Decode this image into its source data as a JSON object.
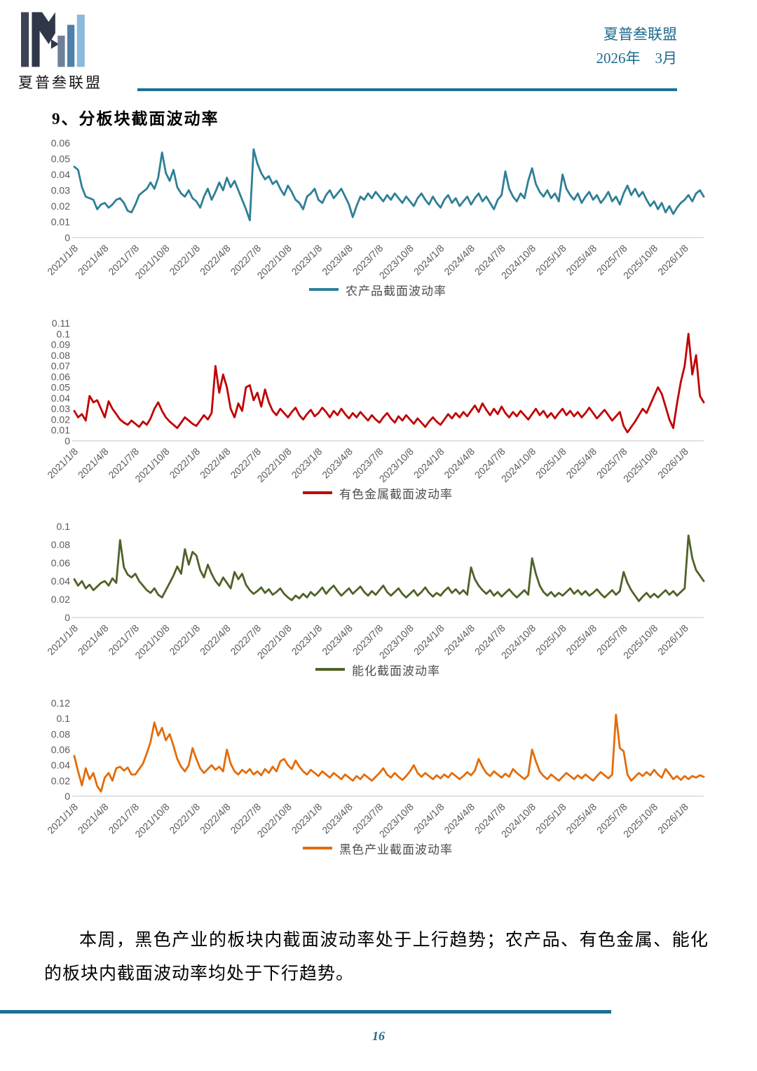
{
  "header": {
    "logo_label": "夏普叁联盟",
    "org_name": "夏普叁联盟",
    "issue_date": "2026年　3月"
  },
  "section_title": "9、分板块截面波动率",
  "chart_data": {
    "type": "line",
    "legend_position": "bottom",
    "grid": "off",
    "x_tick_labels": [
      "2021/1/8",
      "2021/4/8",
      "2021/7/8",
      "2021/10/8",
      "2022/1/8",
      "2022/4/8",
      "2022/7/8",
      "2022/10/8",
      "2023/1/8",
      "2023/4/8",
      "2023/7/8",
      "2023/10/8",
      "2024/1/8",
      "2024/4/8",
      "2024/7/8",
      "2024/10/8",
      "2025/1/8",
      "2025/4/8",
      "2025/7/8",
      "2025/10/8",
      "2026/1/8"
    ],
    "points_per_tick_interval": 8,
    "charts": [
      {
        "name": "农产品截面波动率",
        "color": "#2E7F96",
        "ylim": [
          0,
          0.06
        ],
        "ystep": 0.01,
        "values": [
          0.045,
          0.043,
          0.032,
          0.026,
          0.025,
          0.024,
          0.018,
          0.021,
          0.022,
          0.019,
          0.021,
          0.024,
          0.025,
          0.022,
          0.017,
          0.016,
          0.021,
          0.027,
          0.029,
          0.031,
          0.035,
          0.031,
          0.038,
          0.054,
          0.041,
          0.036,
          0.043,
          0.032,
          0.028,
          0.026,
          0.03,
          0.025,
          0.023,
          0.019,
          0.026,
          0.031,
          0.024,
          0.029,
          0.035,
          0.03,
          0.038,
          0.032,
          0.036,
          0.03,
          0.024,
          0.018,
          0.011,
          0.056,
          0.047,
          0.041,
          0.037,
          0.039,
          0.034,
          0.036,
          0.031,
          0.027,
          0.033,
          0.029,
          0.024,
          0.022,
          0.018,
          0.026,
          0.028,
          0.031,
          0.024,
          0.022,
          0.027,
          0.03,
          0.025,
          0.028,
          0.031,
          0.026,
          0.021,
          0.013,
          0.02,
          0.026,
          0.024,
          0.028,
          0.025,
          0.029,
          0.026,
          0.023,
          0.027,
          0.024,
          0.028,
          0.025,
          0.022,
          0.026,
          0.023,
          0.02,
          0.025,
          0.028,
          0.024,
          0.021,
          0.026,
          0.022,
          0.019,
          0.024,
          0.027,
          0.022,
          0.025,
          0.02,
          0.023,
          0.026,
          0.021,
          0.025,
          0.028,
          0.023,
          0.026,
          0.022,
          0.018,
          0.024,
          0.027,
          0.042,
          0.031,
          0.026,
          0.023,
          0.028,
          0.025,
          0.036,
          0.044,
          0.034,
          0.029,
          0.026,
          0.03,
          0.025,
          0.028,
          0.023,
          0.04,
          0.031,
          0.027,
          0.024,
          0.028,
          0.022,
          0.026,
          0.029,
          0.024,
          0.027,
          0.022,
          0.025,
          0.029,
          0.023,
          0.026,
          0.021,
          0.028,
          0.033,
          0.027,
          0.031,
          0.026,
          0.029,
          0.024,
          0.02,
          0.023,
          0.018,
          0.022,
          0.016,
          0.02,
          0.015,
          0.019,
          0.022,
          0.024,
          0.027,
          0.023,
          0.028,
          0.03,
          0.026
        ]
      },
      {
        "name": "有色金属截面波动率",
        "color": "#C00000",
        "ylim": [
          0,
          0.11
        ],
        "ystep": 0.01,
        "values": [
          0.028,
          0.022,
          0.025,
          0.019,
          0.042,
          0.036,
          0.038,
          0.03,
          0.022,
          0.037,
          0.03,
          0.025,
          0.02,
          0.017,
          0.015,
          0.019,
          0.016,
          0.013,
          0.018,
          0.015,
          0.021,
          0.03,
          0.036,
          0.028,
          0.022,
          0.018,
          0.015,
          0.012,
          0.017,
          0.022,
          0.019,
          0.016,
          0.014,
          0.019,
          0.024,
          0.02,
          0.026,
          0.07,
          0.045,
          0.062,
          0.05,
          0.03,
          0.022,
          0.035,
          0.028,
          0.05,
          0.052,
          0.038,
          0.045,
          0.032,
          0.048,
          0.036,
          0.028,
          0.024,
          0.03,
          0.026,
          0.022,
          0.027,
          0.031,
          0.024,
          0.02,
          0.025,
          0.029,
          0.023,
          0.026,
          0.031,
          0.027,
          0.022,
          0.028,
          0.024,
          0.03,
          0.025,
          0.021,
          0.026,
          0.022,
          0.027,
          0.023,
          0.019,
          0.024,
          0.02,
          0.017,
          0.022,
          0.026,
          0.021,
          0.017,
          0.023,
          0.019,
          0.024,
          0.02,
          0.016,
          0.021,
          0.017,
          0.013,
          0.018,
          0.022,
          0.018,
          0.015,
          0.02,
          0.025,
          0.021,
          0.026,
          0.022,
          0.027,
          0.023,
          0.028,
          0.033,
          0.027,
          0.035,
          0.029,
          0.024,
          0.03,
          0.025,
          0.032,
          0.026,
          0.022,
          0.027,
          0.023,
          0.028,
          0.024,
          0.02,
          0.025,
          0.03,
          0.024,
          0.028,
          0.022,
          0.026,
          0.021,
          0.026,
          0.03,
          0.024,
          0.028,
          0.023,
          0.027,
          0.022,
          0.026,
          0.031,
          0.026,
          0.021,
          0.025,
          0.029,
          0.024,
          0.019,
          0.023,
          0.027,
          0.014,
          0.008,
          0.013,
          0.018,
          0.024,
          0.03,
          0.026,
          0.034,
          0.042,
          0.05,
          0.044,
          0.032,
          0.02,
          0.012,
          0.035,
          0.055,
          0.07,
          0.1,
          0.062,
          0.08,
          0.042,
          0.036
        ]
      },
      {
        "name": "能化截面波动率",
        "color": "#4F6228",
        "ylim": [
          0,
          0.1
        ],
        "ystep": 0.02,
        "values": [
          0.042,
          0.035,
          0.04,
          0.032,
          0.036,
          0.03,
          0.034,
          0.038,
          0.04,
          0.035,
          0.043,
          0.038,
          0.085,
          0.055,
          0.047,
          0.044,
          0.048,
          0.04,
          0.035,
          0.03,
          0.027,
          0.032,
          0.025,
          0.022,
          0.03,
          0.038,
          0.046,
          0.056,
          0.048,
          0.075,
          0.058,
          0.072,
          0.068,
          0.052,
          0.044,
          0.058,
          0.048,
          0.04,
          0.035,
          0.044,
          0.038,
          0.032,
          0.05,
          0.042,
          0.048,
          0.036,
          0.03,
          0.026,
          0.029,
          0.033,
          0.027,
          0.031,
          0.025,
          0.028,
          0.032,
          0.026,
          0.022,
          0.019,
          0.024,
          0.021,
          0.026,
          0.022,
          0.028,
          0.024,
          0.028,
          0.033,
          0.026,
          0.031,
          0.035,
          0.029,
          0.024,
          0.028,
          0.032,
          0.026,
          0.03,
          0.034,
          0.028,
          0.024,
          0.029,
          0.025,
          0.03,
          0.035,
          0.028,
          0.024,
          0.028,
          0.032,
          0.026,
          0.022,
          0.026,
          0.03,
          0.024,
          0.028,
          0.033,
          0.027,
          0.023,
          0.027,
          0.024,
          0.029,
          0.033,
          0.027,
          0.031,
          0.026,
          0.03,
          0.025,
          0.055,
          0.042,
          0.035,
          0.03,
          0.026,
          0.03,
          0.024,
          0.028,
          0.023,
          0.027,
          0.031,
          0.026,
          0.022,
          0.026,
          0.03,
          0.025,
          0.065,
          0.048,
          0.035,
          0.028,
          0.024,
          0.028,
          0.023,
          0.027,
          0.024,
          0.028,
          0.032,
          0.026,
          0.03,
          0.025,
          0.029,
          0.024,
          0.027,
          0.031,
          0.026,
          0.022,
          0.026,
          0.03,
          0.025,
          0.029,
          0.05,
          0.038,
          0.03,
          0.024,
          0.018,
          0.023,
          0.027,
          0.022,
          0.026,
          0.022,
          0.026,
          0.03,
          0.025,
          0.029,
          0.024,
          0.028,
          0.032,
          0.09,
          0.065,
          0.052,
          0.046,
          0.04
        ]
      },
      {
        "name": "黑色产业截面波动率",
        "color": "#E36C0A",
        "ylim": [
          0,
          0.12
        ],
        "ystep": 0.02,
        "values": [
          0.052,
          0.032,
          0.014,
          0.036,
          0.022,
          0.03,
          0.013,
          0.006,
          0.024,
          0.03,
          0.02,
          0.036,
          0.038,
          0.033,
          0.037,
          0.028,
          0.028,
          0.035,
          0.042,
          0.055,
          0.07,
          0.095,
          0.078,
          0.088,
          0.072,
          0.08,
          0.065,
          0.048,
          0.038,
          0.032,
          0.04,
          0.062,
          0.048,
          0.036,
          0.03,
          0.035,
          0.04,
          0.034,
          0.038,
          0.032,
          0.06,
          0.042,
          0.032,
          0.028,
          0.034,
          0.03,
          0.035,
          0.028,
          0.032,
          0.027,
          0.035,
          0.03,
          0.038,
          0.032,
          0.045,
          0.048,
          0.04,
          0.035,
          0.046,
          0.038,
          0.032,
          0.028,
          0.034,
          0.03,
          0.026,
          0.032,
          0.028,
          0.024,
          0.03,
          0.026,
          0.022,
          0.028,
          0.024,
          0.02,
          0.026,
          0.022,
          0.028,
          0.024,
          0.02,
          0.025,
          0.03,
          0.036,
          0.028,
          0.024,
          0.03,
          0.025,
          0.021,
          0.026,
          0.032,
          0.04,
          0.03,
          0.025,
          0.03,
          0.026,
          0.022,
          0.027,
          0.023,
          0.028,
          0.024,
          0.03,
          0.026,
          0.022,
          0.026,
          0.031,
          0.027,
          0.033,
          0.048,
          0.038,
          0.03,
          0.026,
          0.032,
          0.028,
          0.024,
          0.029,
          0.025,
          0.035,
          0.03,
          0.026,
          0.022,
          0.027,
          0.06,
          0.045,
          0.032,
          0.026,
          0.022,
          0.028,
          0.024,
          0.02,
          0.025,
          0.03,
          0.026,
          0.022,
          0.027,
          0.023,
          0.028,
          0.024,
          0.02,
          0.026,
          0.031,
          0.027,
          0.023,
          0.028,
          0.105,
          0.062,
          0.058,
          0.028,
          0.02,
          0.025,
          0.03,
          0.026,
          0.031,
          0.027,
          0.034,
          0.028,
          0.024,
          0.035,
          0.029,
          0.022,
          0.026,
          0.021,
          0.026,
          0.022,
          0.026,
          0.024,
          0.027,
          0.025
        ]
      }
    ]
  },
  "commentary": "本周，黑色产业的板块内截面波动率处于上行趋势；农产品、有色金属、能化的板块内截面波动率均处于下行趋势。",
  "footer": {
    "page_number": "16"
  }
}
